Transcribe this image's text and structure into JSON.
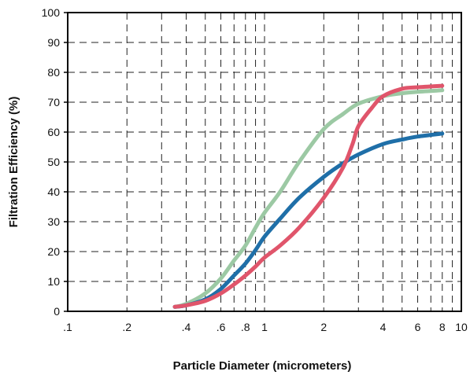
{
  "chart_data": {
    "type": "line",
    "title": "",
    "xlabel": "Particle Diameter (micrometers)",
    "ylabel": "Filtration Efficiency  (%)",
    "x_scale": "log",
    "xlim": [
      0.1,
      10
    ],
    "ylim": [
      0,
      100
    ],
    "x_ticks": [
      {
        "value": 0.1,
        "label": ".1"
      },
      {
        "value": 0.2,
        "label": ".2"
      },
      {
        "value": 0.4,
        "label": ".4"
      },
      {
        "value": 0.6,
        "label": ".6"
      },
      {
        "value": 0.8,
        "label": ".8"
      },
      {
        "value": 1,
        "label": "1"
      },
      {
        "value": 2,
        "label": "2"
      },
      {
        "value": 4,
        "label": "4"
      },
      {
        "value": 6,
        "label": "6"
      },
      {
        "value": 8,
        "label": "8"
      },
      {
        "value": 10,
        "label": "10"
      }
    ],
    "y_ticks": [
      {
        "value": 0,
        "label": "0"
      },
      {
        "value": 10,
        "label": "10"
      },
      {
        "value": 20,
        "label": "20"
      },
      {
        "value": 30,
        "label": "30"
      },
      {
        "value": 40,
        "label": "40"
      },
      {
        "value": 50,
        "label": "50"
      },
      {
        "value": 60,
        "label": "60"
      },
      {
        "value": 70,
        "label": "70"
      },
      {
        "value": 80,
        "label": "80"
      },
      {
        "value": 90,
        "label": "90"
      },
      {
        "value": 100,
        "label": "100"
      }
    ],
    "x_minor_grid": [
      0.3,
      0.5,
      0.7,
      0.9,
      3,
      5,
      7,
      9
    ],
    "grid": "dashed",
    "legend": "none",
    "series": [
      {
        "color": "#9cc9a4",
        "x": [
          0.35,
          0.4,
          0.5,
          0.6,
          0.7,
          0.8,
          0.9,
          1.0,
          1.2,
          1.5,
          2.0,
          2.5,
          3.0,
          4.0,
          5.0,
          6.0,
          8.0
        ],
        "y": [
          1.5,
          2.5,
          6,
          11,
          17,
          22,
          28,
          33,
          40,
          50,
          61,
          66,
          69.5,
          72,
          73,
          73.5,
          74
        ]
      },
      {
        "color": "#1f6fa8",
        "x": [
          0.35,
          0.4,
          0.5,
          0.6,
          0.7,
          0.8,
          0.9,
          1.0,
          1.2,
          1.5,
          2.0,
          2.5,
          3.0,
          4.0,
          5.0,
          6.0,
          8.0
        ],
        "y": [
          1.5,
          2,
          4,
          7.5,
          12,
          16,
          20.5,
          25,
          31,
          38,
          45,
          49.5,
          52.5,
          56,
          57.5,
          58.5,
          59.5
        ]
      },
      {
        "color": "#e0556b",
        "x": [
          0.35,
          0.4,
          0.5,
          0.6,
          0.7,
          0.8,
          0.9,
          1.0,
          1.2,
          1.5,
          2.0,
          2.5,
          2.8,
          3.0,
          3.5,
          4.0,
          5.0,
          6.0,
          8.0
        ],
        "y": [
          1.5,
          2,
          3.5,
          6,
          9,
          12,
          15,
          18,
          22,
          28,
          38,
          48,
          56,
          62,
          68,
          72,
          74.5,
          75,
          75.5
        ]
      }
    ]
  }
}
